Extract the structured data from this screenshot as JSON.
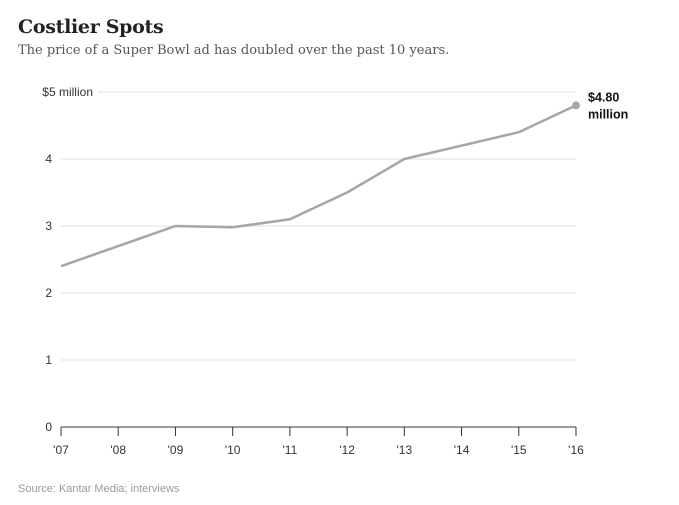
{
  "title": "Costlier Spots",
  "subtitle": "The price of a Super Bowl ad has doubled over the past 10 years.",
  "source": "Source: Kantar Media; interviews",
  "colors": {
    "line": "#a6a6a6",
    "grid": "#e2e2e2",
    "axis": "#333333"
  },
  "chart_data": {
    "type": "line",
    "x": [
      "'07",
      "'08",
      "'09",
      "'10",
      "'11",
      "'12",
      "'13",
      "'14",
      "'15",
      "'16"
    ],
    "series": [
      {
        "values": [
          2.4,
          2.7,
          3.0,
          2.98,
          3.1,
          3.5,
          4.0,
          4.2,
          4.4,
          4.8
        ]
      }
    ],
    "ylim": [
      0,
      5
    ],
    "yticks": [
      0,
      1,
      2,
      3,
      4,
      5
    ],
    "ytick_labels": [
      "0",
      "1",
      "2",
      "3",
      "4",
      "$5 million"
    ],
    "grid": true,
    "annotation": {
      "index": 9,
      "lines": [
        "$4.80",
        "million"
      ]
    }
  }
}
